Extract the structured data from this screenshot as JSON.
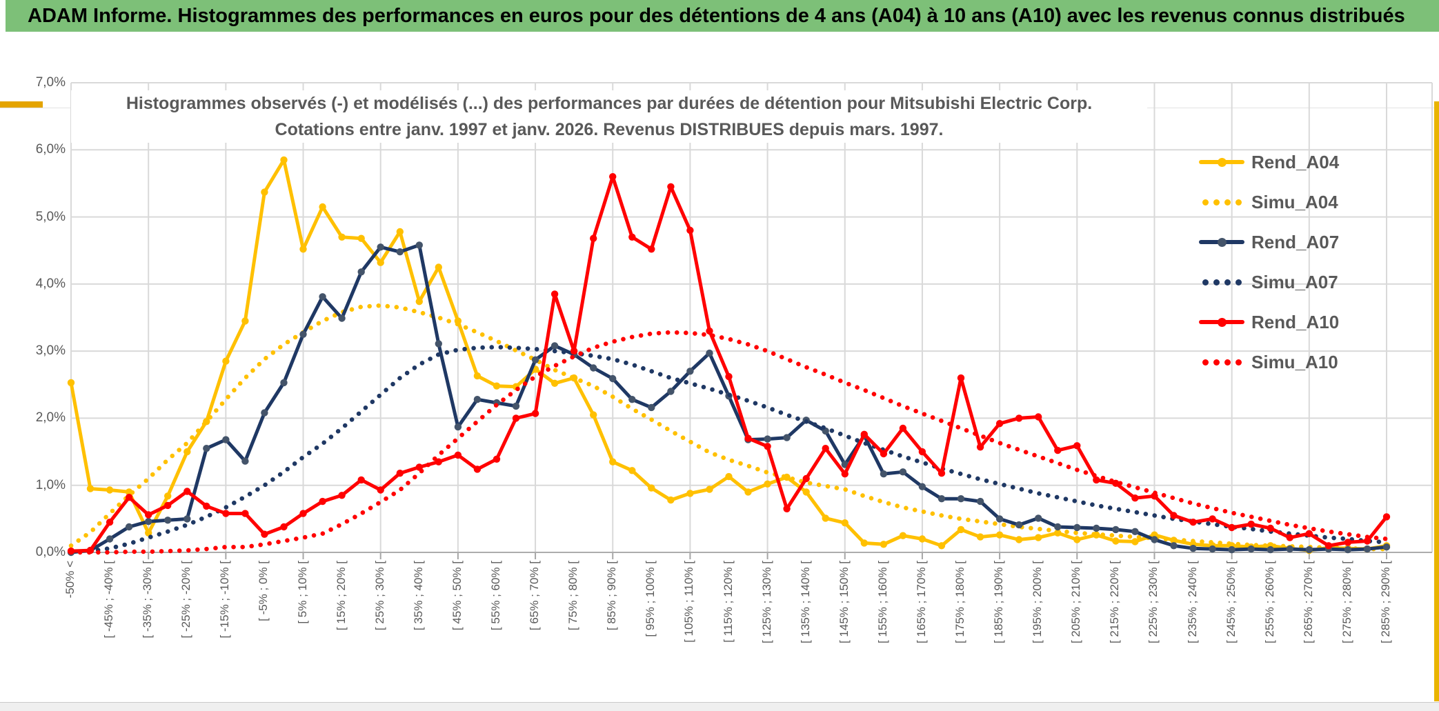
{
  "window": {
    "header_title": "ADAM Informe. Histogrammes des performances en euros pour des détentions de 4 ans (A04) à 10 ans (A10) avec les revenus connus distribués",
    "colors": {
      "header_bg": "#7DC078",
      "accent_gold": "#E4A400",
      "chart_text": "#595959",
      "gridline": "#D9D9D9"
    }
  },
  "chart_data": {
    "type": "line",
    "title_line1": "Histogrammes observés (-) et modélisés (...) des performances par durées de détention pour Mitsubishi Electric Corp.",
    "title_line2": "Cotations entre janv. 1997 et janv. 2026. Revenus DISTRIBUES depuis mars. 1997.",
    "xlabel": "",
    "ylabel": "",
    "ylim": [
      0,
      7
    ],
    "grid": true,
    "legend_position": "right-inside",
    "y_ticks": [
      "0,0%",
      "1,0%",
      "2,0%",
      "3,0%",
      "4,0%",
      "5,0%",
      "6,0%",
      "7,0%"
    ],
    "n_points": 69,
    "category_step": 2,
    "categories": [
      "-50% <",
      "[ -45% ; -40% [",
      "[ -35% ; -30% [",
      "[ -25% ; -20% [",
      "[ -15% ; -10% [",
      "[ -5% ; 0% [",
      "[ 5% ; 10% [",
      "[ 15% ; 20% [",
      "[ 25% ; 30% [",
      "[ 35% ; 40% [",
      "[ 45% ; 50% [",
      "[ 55% ; 60% [",
      "[ 65% ; 70% [",
      "[ 75% ; 80% [",
      "[ 85% ; 90% [",
      "[ 95% ; 100% [",
      "[ 105% ; 110% [",
      "[ 115% ; 120% [",
      "[ 125% ; 130% [",
      "[ 135% ; 140% [",
      "[ 145% ; 150% [",
      "[ 155% ; 160% [",
      "[ 165% ; 170% [",
      "[ 175% ; 180% [",
      "[ 185% ; 190% [",
      "[ 195% ; 200% [",
      "[ 205% ; 210% [",
      "[ 215% ; 220% [",
      "[ 225% ; 230% [",
      "[ 235% ; 240% [",
      "[ 245% ; 250% [",
      "[ 255% ; 260% [",
      "[ 265% ; 270% [",
      "[ 275% ; 280% [",
      "[ 285% ; 290% ["
    ],
    "series": [
      {
        "name": "Rend_A04",
        "color": "#FFC000",
        "style": "solid",
        "marker": true,
        "marker_color": "#FFC000",
        "values": [
          2.53,
          0.95,
          0.93,
          0.9,
          0.29,
          0.84,
          1.5,
          1.95,
          2.85,
          3.45,
          5.37,
          5.85,
          4.52,
          5.15,
          4.7,
          4.68,
          4.32,
          4.78,
          3.74,
          4.25,
          3.45,
          2.63,
          2.48,
          2.47,
          2.73,
          2.52,
          2.6,
          2.05,
          1.35,
          1.22,
          0.96,
          0.78,
          0.88,
          0.94,
          1.13,
          0.9,
          1.02,
          1.12,
          0.9,
          0.51,
          0.44,
          0.14,
          0.12,
          0.25,
          0.2,
          0.1,
          0.34,
          0.23,
          0.26,
          0.19,
          0.22,
          0.29,
          0.19,
          0.26,
          0.17,
          0.16,
          0.26,
          0.18,
          0.12,
          0.1,
          0.1,
          0.08,
          0.1,
          0.06,
          0.03,
          0.07,
          0.06,
          0.05,
          0.1
        ]
      },
      {
        "name": "Simu_A04",
        "color": "#FFC000",
        "style": "dotted",
        "marker": false,
        "marker_color": "#FFC000",
        "values": [
          0.1,
          0.3,
          0.58,
          0.85,
          1.1,
          1.38,
          1.63,
          1.95,
          2.28,
          2.6,
          2.88,
          3.1,
          3.28,
          3.45,
          3.58,
          3.66,
          3.68,
          3.65,
          3.58,
          3.5,
          3.4,
          3.28,
          3.15,
          3.01,
          2.87,
          2.72,
          2.6,
          2.48,
          2.32,
          2.14,
          1.98,
          1.81,
          1.65,
          1.49,
          1.38,
          1.29,
          1.19,
          1.12,
          1.04,
          0.99,
          0.94,
          0.84,
          0.75,
          0.67,
          0.61,
          0.55,
          0.5,
          0.46,
          0.42,
          0.38,
          0.35,
          0.32,
          0.29,
          0.27,
          0.25,
          0.23,
          0.21,
          0.19,
          0.17,
          0.15,
          0.13,
          0.11,
          0.1,
          0.09,
          0.08,
          0.07,
          0.06,
          0.05,
          0.05
        ]
      },
      {
        "name": "Rend_A07",
        "color": "#1F3864",
        "style": "solid",
        "marker": true,
        "marker_color": "#44546A",
        "values": [
          0.0,
          0.03,
          0.2,
          0.38,
          0.46,
          0.48,
          0.5,
          1.55,
          1.68,
          1.36,
          2.08,
          2.53,
          3.25,
          3.81,
          3.49,
          4.18,
          4.55,
          4.48,
          4.58,
          3.11,
          1.87,
          2.28,
          2.23,
          2.18,
          2.87,
          3.08,
          2.95,
          2.75,
          2.59,
          2.28,
          2.16,
          2.4,
          2.7,
          2.97,
          2.33,
          1.68,
          1.69,
          1.71,
          1.97,
          1.81,
          1.31,
          1.74,
          1.17,
          1.2,
          0.98,
          0.8,
          0.8,
          0.76,
          0.5,
          0.41,
          0.51,
          0.38,
          0.37,
          0.36,
          0.34,
          0.31,
          0.19,
          0.1,
          0.06,
          0.05,
          0.04,
          0.05,
          0.04,
          0.05,
          0.04,
          0.05,
          0.04,
          0.05,
          0.08
        ]
      },
      {
        "name": "Simu_A07",
        "color": "#1F3864",
        "style": "dotted",
        "marker": false,
        "marker_color": "#1F3864",
        "values": [
          0.0,
          0.02,
          0.06,
          0.13,
          0.22,
          0.31,
          0.41,
          0.53,
          0.67,
          0.83,
          1.0,
          1.2,
          1.42,
          1.62,
          1.85,
          2.1,
          2.35,
          2.6,
          2.8,
          2.95,
          3.02,
          3.05,
          3.06,
          3.05,
          3.03,
          3.0,
          2.97,
          2.93,
          2.88,
          2.8,
          2.7,
          2.6,
          2.52,
          2.44,
          2.35,
          2.26,
          2.16,
          2.05,
          1.95,
          1.85,
          1.74,
          1.63,
          1.53,
          1.43,
          1.34,
          1.25,
          1.17,
          1.09,
          1.02,
          0.95,
          0.88,
          0.82,
          0.76,
          0.7,
          0.65,
          0.6,
          0.55,
          0.5,
          0.46,
          0.42,
          0.38,
          0.35,
          0.31,
          0.28,
          0.25,
          0.22,
          0.2,
          0.17,
          0.15
        ]
      },
      {
        "name": "Rend_A10",
        "color": "#FF0000",
        "style": "solid",
        "marker": true,
        "marker_color": "#FF0000",
        "values": [
          0.02,
          0.03,
          0.45,
          0.82,
          0.56,
          0.7,
          0.91,
          0.69,
          0.58,
          0.58,
          0.27,
          0.38,
          0.58,
          0.76,
          0.85,
          1.08,
          0.93,
          1.18,
          1.27,
          1.35,
          1.45,
          1.24,
          1.39,
          2.0,
          2.07,
          3.85,
          3.0,
          4.68,
          5.6,
          4.7,
          4.52,
          5.45,
          4.8,
          3.3,
          2.62,
          1.7,
          1.58,
          0.65,
          1.1,
          1.55,
          1.17,
          1.76,
          1.47,
          1.85,
          1.5,
          1.18,
          2.6,
          1.57,
          1.92,
          2.0,
          2.02,
          1.52,
          1.59,
          1.08,
          1.03,
          0.81,
          0.84,
          0.55,
          0.45,
          0.5,
          0.37,
          0.42,
          0.36,
          0.22,
          0.28,
          0.1,
          0.15,
          0.17,
          0.53
        ]
      },
      {
        "name": "Simu_A10",
        "color": "#FF0000",
        "style": "dotted",
        "marker": false,
        "marker_color": "#FF0000",
        "values": [
          0.0,
          0.0,
          0.0,
          0.01,
          0.01,
          0.02,
          0.03,
          0.05,
          0.08,
          0.08,
          0.12,
          0.17,
          0.22,
          0.28,
          0.42,
          0.58,
          0.75,
          0.93,
          1.18,
          1.45,
          1.7,
          1.95,
          2.2,
          2.42,
          2.62,
          2.78,
          2.92,
          3.05,
          3.14,
          3.21,
          3.26,
          3.28,
          3.27,
          3.24,
          3.18,
          3.1,
          3.0,
          2.88,
          2.76,
          2.65,
          2.53,
          2.42,
          2.3,
          2.18,
          2.07,
          1.96,
          1.85,
          1.74,
          1.63,
          1.53,
          1.43,
          1.33,
          1.23,
          1.14,
          1.05,
          0.97,
          0.89,
          0.81,
          0.73,
          0.66,
          0.59,
          0.53,
          0.47,
          0.41,
          0.36,
          0.31,
          0.27,
          0.23,
          0.2
        ]
      }
    ]
  }
}
